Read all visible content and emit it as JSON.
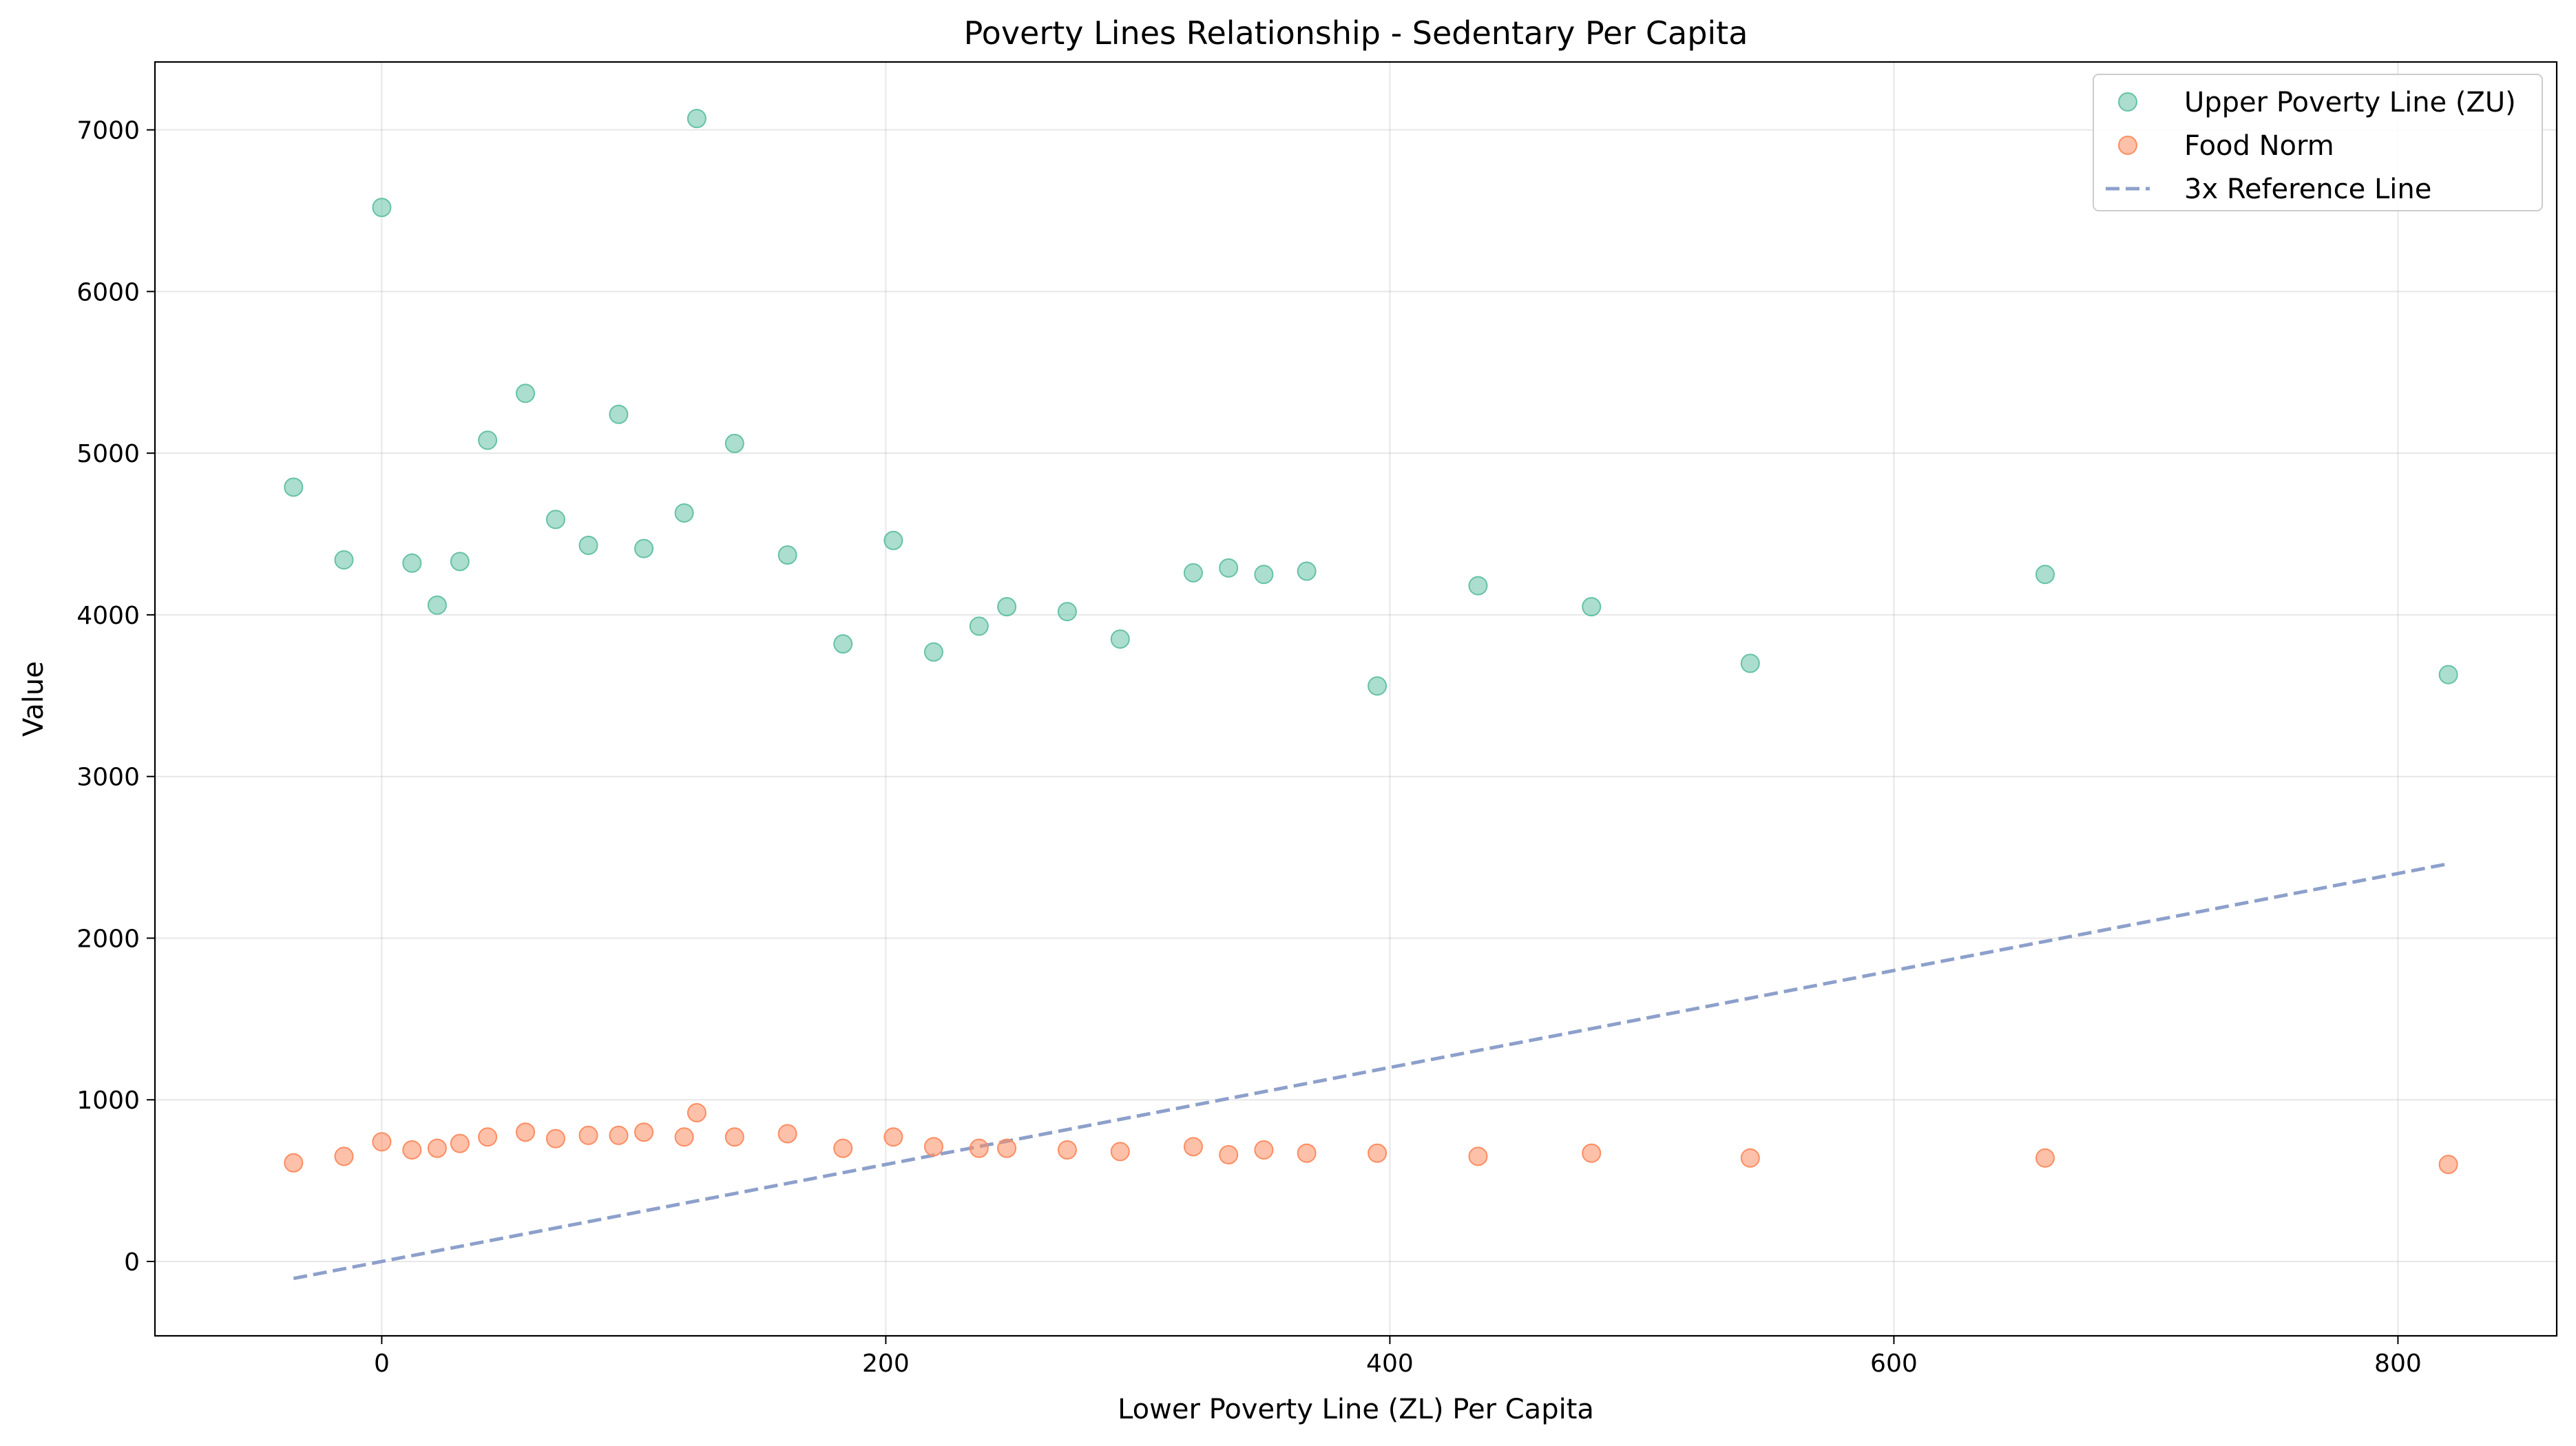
{
  "chart_data": {
    "type": "scatter",
    "title": "Poverty Lines Relationship - Sedentary Per Capita",
    "xlabel": "Lower Poverty Line (ZL) Per Capita",
    "ylabel": "Value",
    "xlim": [
      -90,
      863
    ],
    "ylim": [
      -460,
      7420
    ],
    "xticks": [
      0,
      200,
      400,
      600,
      800
    ],
    "yticks": [
      0,
      1000,
      2000,
      3000,
      4000,
      5000,
      6000,
      7000
    ],
    "grid": true,
    "legend_position": "top-right",
    "x": [
      -35,
      -15,
      0,
      12,
      22,
      31,
      42,
      57,
      69,
      82,
      94,
      104,
      120,
      125,
      140,
      161,
      183,
      203,
      219,
      237,
      248,
      272,
      293,
      322,
      336,
      350,
      367,
      395,
      435,
      480,
      543,
      660,
      820
    ],
    "series": [
      {
        "name": "Upper Poverty Line (ZU)",
        "kind": "scatter",
        "color": "#66c2a5",
        "values": [
          4790,
          4340,
          6520,
          4320,
          4060,
          4330,
          5080,
          5370,
          4590,
          4430,
          5240,
          4410,
          4630,
          7070,
          5060,
          4370,
          3820,
          4460,
          3770,
          3930,
          4050,
          4020,
          3850,
          4260,
          4290,
          4250,
          4270,
          3560,
          4180,
          4050,
          3700,
          4250,
          3630
        ]
      },
      {
        "name": "Food Norm",
        "kind": "scatter",
        "color": "#fc8d62",
        "values": [
          610,
          650,
          740,
          690,
          700,
          730,
          770,
          800,
          760,
          780,
          780,
          800,
          770,
          920,
          770,
          790,
          700,
          770,
          710,
          700,
          700,
          690,
          680,
          710,
          660,
          690,
          670,
          670,
          650,
          670,
          640,
          640,
          600
        ]
      },
      {
        "name": "3x Reference Line",
        "kind": "line",
        "style": "dashed",
        "color": "#8da0cb",
        "x": [
          -35,
          820
        ],
        "values": [
          -105,
          2460
        ]
      }
    ]
  }
}
